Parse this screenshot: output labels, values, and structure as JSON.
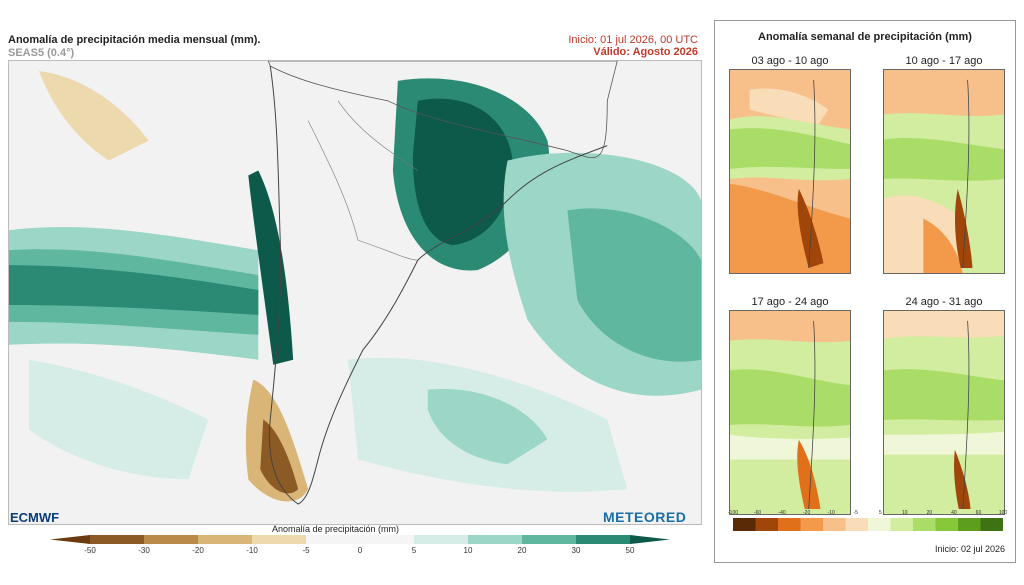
{
  "header": {
    "title": "Anomalía de precipitación media mensual (mm).",
    "model": "SEAS5 (0.4°)",
    "init": "Inicio: 01 jul 2026, 00 UTC",
    "valid": "Válido: Agosto 2026"
  },
  "colorbar": {
    "label": "Anomalía de precipitación (mm)",
    "ticks": [
      "-50",
      "-30",
      "-20",
      "-10",
      "-5",
      "0",
      "5",
      "10",
      "20",
      "30",
      "50"
    ],
    "colors": [
      "#6b3a10",
      "#8c5a25",
      "#b98a4a",
      "#d9b678",
      "#ecd9ae",
      "#f5f5f5",
      "#f5f5f5",
      "#d5ede6",
      "#9cd6c6",
      "#5fb7a0",
      "#2b8a74",
      "#0e5a4a"
    ]
  },
  "logos": {
    "left": "ECMWF",
    "right": "METEORED"
  },
  "weekly_panel": {
    "title": "Anomalía semanal de precipitación (mm)",
    "weeks": [
      {
        "label": "03 ago - 10 ago"
      },
      {
        "label": "10 ago - 17 ago"
      },
      {
        "label": "17 ago - 24 ago"
      },
      {
        "label": "24 ago - 31 ago"
      }
    ],
    "colorbar_ticks": [
      "-100",
      "-60",
      "-40",
      "-20",
      "-10",
      "-5",
      "5",
      "10",
      "20",
      "40",
      "60",
      "100"
    ],
    "colorbar_colors": [
      "#5a2a06",
      "#a0460a",
      "#e0701a",
      "#f29a4a",
      "#f7c08a",
      "#f9dcb8",
      "#f0f7d8",
      "#d2eca0",
      "#aadd68",
      "#86c83a",
      "#5e9e1e",
      "#3e7212"
    ],
    "init": "Inicio: 02 jul 2026"
  }
}
